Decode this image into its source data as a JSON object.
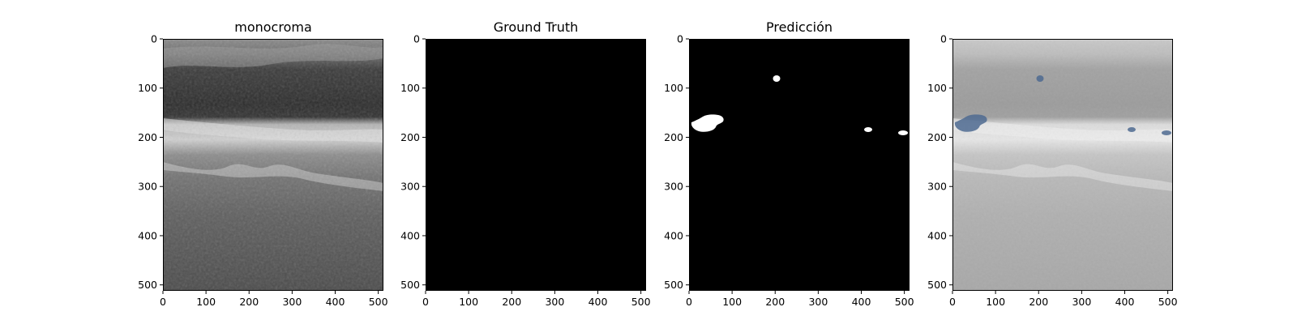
{
  "figure": {
    "panels": [
      {
        "title": "monocroma",
        "image": "ultrasound-monochrome",
        "x_ticks": [
          "0",
          "100",
          "200",
          "300",
          "400",
          "500"
        ],
        "y_ticks": [
          "0",
          "100",
          "200",
          "300",
          "400",
          "500"
        ]
      },
      {
        "title": "Ground Truth",
        "image": "mask-empty",
        "x_ticks": [
          "0",
          "100",
          "200",
          "300",
          "400",
          "500"
        ],
        "y_ticks": [
          "0",
          "100",
          "200",
          "300",
          "400",
          "500"
        ]
      },
      {
        "title": "Predicción",
        "image": "mask-prediction",
        "x_ticks": [
          "0",
          "100",
          "200",
          "300",
          "400",
          "500"
        ],
        "y_ticks": [
          "0",
          "100",
          "200",
          "300",
          "400",
          "500"
        ]
      },
      {
        "title": "",
        "image": "ultrasound-overlay",
        "x_ticks": [
          "0",
          "100",
          "200",
          "300",
          "400",
          "500"
        ],
        "y_ticks": [
          "0",
          "100",
          "200",
          "300",
          "400",
          "500"
        ]
      }
    ],
    "colors": {
      "mask_background": "#000000",
      "mask_foreground": "#ffffff",
      "overlay_region": "#4d6a90"
    }
  }
}
